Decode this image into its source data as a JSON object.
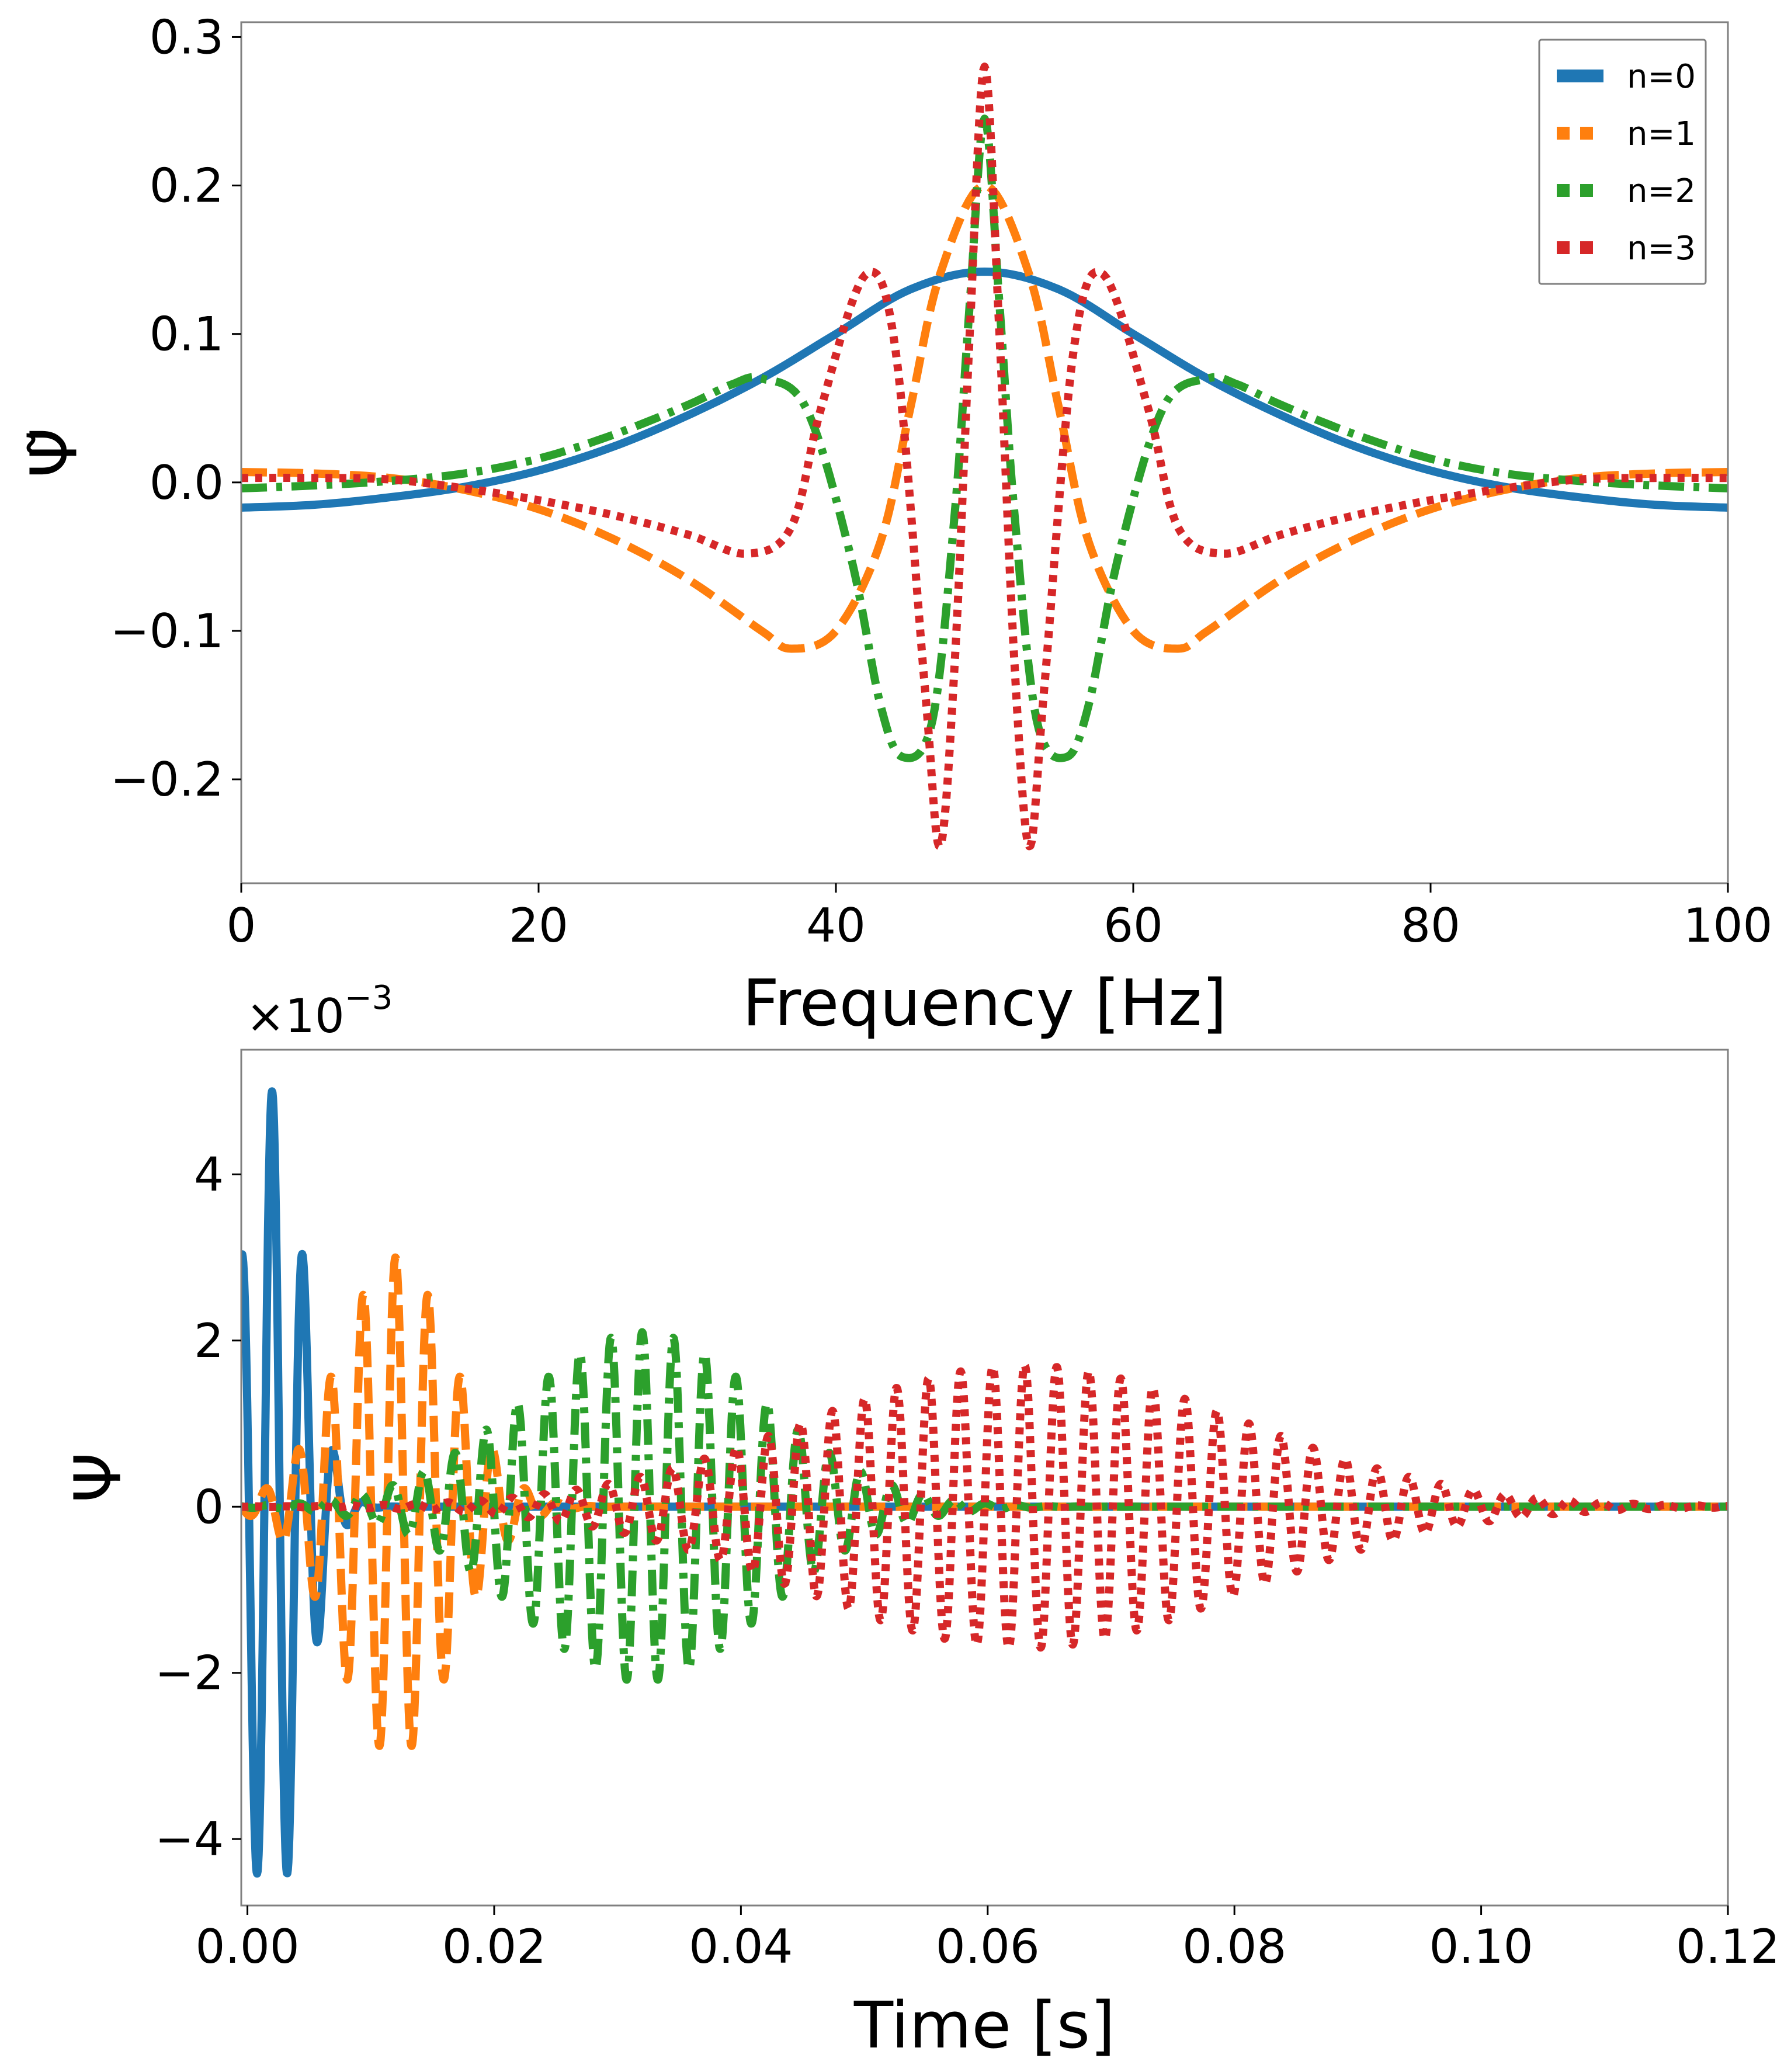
{
  "colors": {
    "n0": "#1f77b4",
    "n1": "#ff7f0e",
    "n2": "#2ca02c",
    "n3": "#d62728",
    "axes": "#000000",
    "frame": "#808080"
  },
  "chart_data": [
    {
      "type": "line",
      "panel": "top",
      "xlabel": "Frequency [Hz]",
      "ylabel": "Ψ̃",
      "xlim": [
        0,
        100
      ],
      "ylim": [
        -0.27,
        0.31
      ],
      "grid": false,
      "legend": "top-right",
      "x_ticks": [
        0,
        20,
        40,
        60,
        80,
        100
      ],
      "x_tick_labels": [
        "0",
        "20",
        "40",
        "60",
        "80",
        "100"
      ],
      "y_ticks": [
        -0.2,
        -0.1,
        0.0,
        0.1,
        0.2,
        0.3
      ],
      "y_tick_labels": [
        "−0.2",
        "−0.1",
        "0.0",
        "0.1",
        "0.2",
        "0.3"
      ],
      "series": [
        {
          "name": "n=0",
          "style": "solid",
          "color": "#1f77b4",
          "x": [
            0,
            5,
            10,
            15,
            20,
            25,
            30,
            35,
            40,
            45,
            50,
            55,
            60,
            65,
            70,
            75,
            80,
            85,
            90,
            95,
            100
          ],
          "y": [
            -0.017,
            -0.015,
            -0.01,
            -0.003,
            0.008,
            0.024,
            0.045,
            0.07,
            0.1,
            0.13,
            0.142,
            0.13,
            0.1,
            0.07,
            0.045,
            0.024,
            0.008,
            -0.003,
            -0.01,
            -0.015,
            -0.017
          ]
        },
        {
          "name": "n=1",
          "style": "dashed",
          "color": "#ff7f0e",
          "x": [
            0,
            5,
            10,
            15,
            20,
            25,
            30,
            35,
            37,
            40,
            43,
            45,
            47,
            50,
            53,
            55,
            57,
            60,
            63,
            65,
            70,
            75,
            80,
            85,
            90,
            95,
            100
          ],
          "y": [
            0.007,
            0.006,
            0.003,
            -0.005,
            -0.018,
            -0.038,
            -0.065,
            -0.1,
            -0.112,
            -0.1,
            -0.04,
            0.05,
            0.14,
            0.2,
            0.14,
            0.05,
            -0.04,
            -0.1,
            -0.112,
            -0.1,
            -0.065,
            -0.038,
            -0.018,
            -0.005,
            0.003,
            0.006,
            0.007
          ]
        },
        {
          "name": "n=2",
          "style": "dashdot",
          "color": "#2ca02c",
          "x": [
            0,
            5,
            10,
            15,
            20,
            25,
            30,
            33,
            35,
            38,
            41,
            43,
            44.5,
            46.5,
            48,
            49,
            50,
            51,
            52,
            53.5,
            55.5,
            57,
            59,
            62,
            65,
            67,
            70,
            75,
            80,
            85,
            90,
            95,
            100
          ],
          "y": [
            -0.004,
            -0.002,
            0.001,
            0.006,
            0.016,
            0.032,
            0.052,
            0.066,
            0.07,
            0.05,
            -0.05,
            -0.15,
            -0.185,
            -0.16,
            -0.02,
            0.12,
            0.245,
            0.12,
            -0.02,
            -0.16,
            -0.185,
            -0.15,
            -0.05,
            0.05,
            0.07,
            0.066,
            0.052,
            0.032,
            0.016,
            0.006,
            0.001,
            -0.002,
            -0.004
          ]
        },
        {
          "name": "n=3",
          "style": "dotted",
          "color": "#d62728",
          "x": [
            0,
            5,
            10,
            15,
            20,
            25,
            30,
            34,
            37,
            39,
            42,
            44,
            46,
            47,
            48,
            49,
            50,
            51,
            52,
            53,
            54,
            56,
            58,
            61,
            63,
            66,
            70,
            75,
            80,
            85,
            90,
            95,
            100
          ],
          "y": [
            0.003,
            0.003,
            0.002,
            -0.004,
            -0.012,
            -0.022,
            -0.035,
            -0.048,
            -0.03,
            0.05,
            0.14,
            0.09,
            -0.14,
            -0.245,
            -0.12,
            0.1,
            0.28,
            0.1,
            -0.12,
            -0.245,
            -0.14,
            0.09,
            0.14,
            0.05,
            -0.03,
            -0.048,
            -0.035,
            -0.022,
            -0.012,
            -0.004,
            0.002,
            0.003,
            0.003
          ]
        }
      ]
    },
    {
      "type": "line",
      "panel": "bottom",
      "xlabel": "Time [s]",
      "ylabel": "Ψ",
      "y_scale_label": "×10",
      "y_scale_exponent": "−3",
      "xlim": [
        -0.0005,
        0.12
      ],
      "ylim": [
        -4.8,
        5.5
      ],
      "grid": false,
      "x_ticks": [
        0.0,
        0.02,
        0.04,
        0.06,
        0.08,
        0.1,
        0.12
      ],
      "x_tick_labels": [
        "0.00",
        "0.02",
        "0.04",
        "0.06",
        "0.08",
        "0.10",
        "0.12"
      ],
      "y_ticks": [
        -4,
        -2,
        0,
        2,
        4
      ],
      "y_tick_labels": [
        "−4",
        "−2",
        "0",
        "2",
        "4"
      ],
      "series": [
        {
          "name": "n=0",
          "style": "solid",
          "color": "#1f77b4",
          "packet": {
            "center": 0.002,
            "width": 0.0035,
            "amplitude": 5.0,
            "frequency": 400,
            "t_end": 0.12
          }
        },
        {
          "name": "n=1",
          "style": "dashed",
          "color": "#ff7f0e",
          "packet": {
            "center": 0.012,
            "width": 0.0065,
            "amplitude": 3.0,
            "frequency": 380,
            "t_end": 0.12
          }
        },
        {
          "name": "n=2",
          "style": "dashdot",
          "color": "#2ca02c",
          "packet": {
            "center": 0.032,
            "width": 0.014,
            "amplitude": 2.1,
            "frequency": 395,
            "t_end": 0.12
          }
        },
        {
          "name": "n=3",
          "style": "dotted",
          "color": "#d62728",
          "packet": {
            "center": 0.063,
            "width": 0.025,
            "amplitude": 1.7,
            "frequency": 385,
            "t_end": 0.12
          }
        }
      ]
    }
  ]
}
